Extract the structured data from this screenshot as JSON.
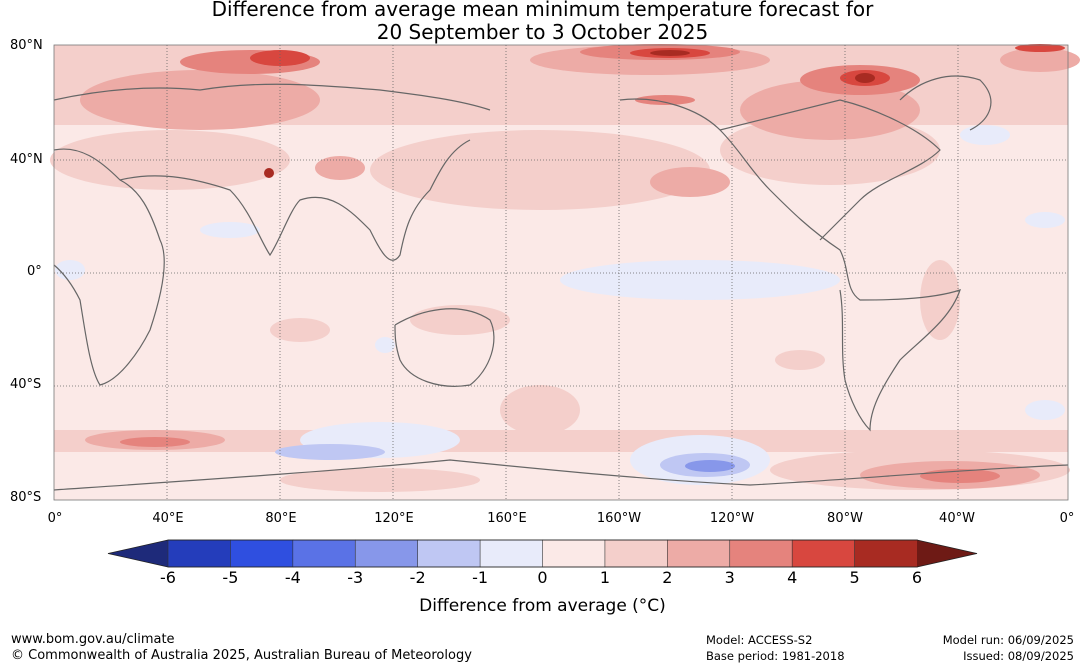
{
  "title": {
    "line1": "Difference from average mean minimum temperature forecast for",
    "line2": "20 September to 3 October 2025"
  },
  "lat_labels": [
    "80°N",
    "40°N",
    "0°",
    "40°S",
    "80°S"
  ],
  "lon_labels": [
    "0°",
    "40°E",
    "80°E",
    "120°E",
    "160°E",
    "160°W",
    "120°W",
    "80°W",
    "40°W",
    "0°"
  ],
  "colorbar": {
    "ticks": [
      "-6",
      "-5",
      "-4",
      "-3",
      "-2",
      "-1",
      "0",
      "1",
      "2",
      "3",
      "4",
      "5",
      "6"
    ],
    "colors": [
      "#1e2a7a",
      "#243dbb",
      "#2f4fe0",
      "#5a72e6",
      "#8797ea",
      "#bfc7f3",
      "#e8ebfa",
      "#fbe9e7",
      "#f4cfcb",
      "#edaba6",
      "#e5837d",
      "#d8473f",
      "#a82b22",
      "#6e1a15"
    ],
    "label": "Difference from average (°C)"
  },
  "footer": {
    "url": "www.bom.gov.au/climate",
    "copyright": "© Commonwealth of Australia 2025, Australian Bureau of Meteorology",
    "model": "Model: ACCESS-S2",
    "base_period": "Base period: 1981-2018",
    "model_run": "Model run: 06/09/2025",
    "issued": "Issued: 08/09/2025"
  }
}
